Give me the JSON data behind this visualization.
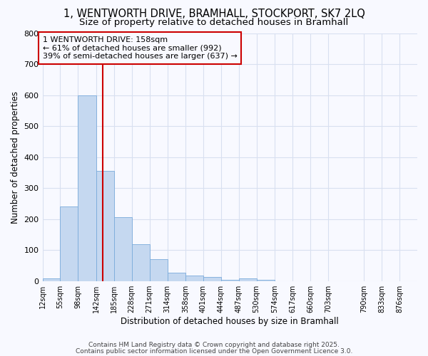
{
  "title": "1, WENTWORTH DRIVE, BRAMHALL, STOCKPORT, SK7 2LQ",
  "subtitle": "Size of property relative to detached houses in Bramhall",
  "xlabel": "Distribution of detached houses by size in Bramhall",
  "ylabel": "Number of detached properties",
  "bin_labels": [
    "12sqm",
    "55sqm",
    "98sqm",
    "142sqm",
    "185sqm",
    "228sqm",
    "271sqm",
    "314sqm",
    "358sqm",
    "401sqm",
    "444sqm",
    "487sqm",
    "530sqm",
    "574sqm",
    "617sqm",
    "660sqm",
    "703sqm",
    "790sqm",
    "833sqm",
    "876sqm"
  ],
  "bin_edges": [
    12,
    55,
    98,
    142,
    185,
    228,
    271,
    314,
    358,
    401,
    444,
    487,
    530,
    574,
    617,
    660,
    703,
    790,
    833,
    876
  ],
  "bar_heights": [
    8,
    240,
    598,
    355,
    205,
    118,
    70,
    28,
    17,
    12,
    5,
    8,
    3,
    0,
    0,
    0,
    0,
    0,
    0
  ],
  "bar_color": "#c5d8f0",
  "bar_edgecolor": "#7aabdb",
  "vline_x": 158,
  "vline_color": "#cc0000",
  "ylim": [
    0,
    800
  ],
  "annotation_text": "1 WENTWORTH DRIVE: 158sqm\n← 61% of detached houses are smaller (992)\n39% of semi-detached houses are larger (637) →",
  "annotation_box_color": "#cc0000",
  "footer1": "Contains HM Land Registry data © Crown copyright and database right 2025.",
  "footer2": "Contains public sector information licensed under the Open Government Licence 3.0.",
  "bg_color": "#f8f9ff",
  "grid_color": "#d8e0f0",
  "title_fontsize": 10.5,
  "subtitle_fontsize": 9.5,
  "annot_fontsize": 8.0
}
